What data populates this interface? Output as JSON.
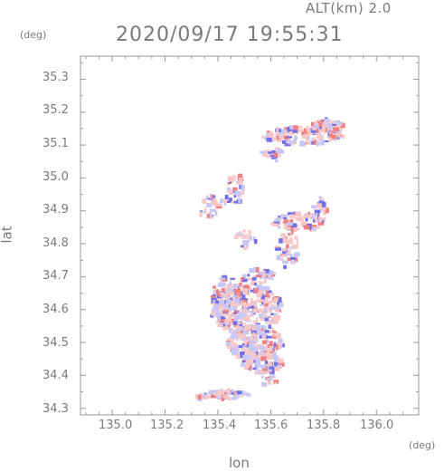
{
  "header": {
    "altitude": "ALT(km)  2.0",
    "datetime": "2020/09/17 19:55:31"
  },
  "axes": {
    "y_unit": "(deg)",
    "x_unit": "(deg)",
    "y_label": "lat",
    "x_label": "lon",
    "x_ticks": [
      "135.0",
      "135.2",
      "135.4",
      "135.6",
      "135.8",
      "136.0"
    ],
    "y_ticks": [
      "35.3",
      "35.2",
      "35.1",
      "35.0",
      "34.9",
      "34.8",
      "34.7",
      "34.6",
      "34.5",
      "34.4",
      "34.3"
    ],
    "x_range": [
      134.88,
      136.16
    ],
    "y_range": [
      34.28,
      35.37
    ]
  },
  "colors": {
    "frame": "#9a9a9a",
    "positive": "#f08080",
    "negative": "#7070e8",
    "light_positive": "#f8c8c8",
    "light_negative": "#c8c8f8"
  }
}
